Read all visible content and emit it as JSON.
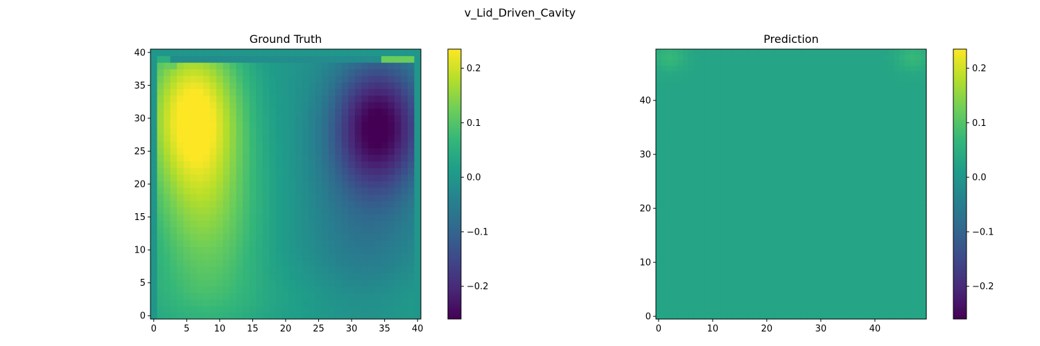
{
  "figure": {
    "suptitle": "v_Lid_Driven_Cavity"
  },
  "colormap": {
    "name": "viridis",
    "stops": [
      "#440154",
      "#482878",
      "#3e4989",
      "#31688e",
      "#26828e",
      "#1f9e89",
      "#35b779",
      "#6ece58",
      "#b5de2b",
      "#fde725"
    ]
  },
  "chart_data": [
    {
      "type": "heatmap",
      "title": "Ground Truth",
      "grid_size": [
        41,
        41
      ],
      "xlim": [
        -0.5,
        40.5
      ],
      "ylim": [
        -0.5,
        40.5
      ],
      "origin": "lower",
      "xticks": [
        0,
        5,
        10,
        15,
        20,
        25,
        30,
        35,
        40
      ],
      "yticks": [
        0,
        5,
        10,
        15,
        20,
        25,
        30,
        35,
        40
      ],
      "colorbar": {
        "vmin": -0.26,
        "vmax": 0.235,
        "ticks": [
          -0.2,
          -0.1,
          0.0,
          0.1,
          0.2
        ],
        "tick_labels": [
          "−0.2",
          "−0.1",
          "0.0",
          "0.1",
          "0.2"
        ]
      },
      "field_features": {
        "background": 0.0,
        "positive_vortex": {
          "center": [
            6,
            31
          ],
          "peak": 0.235
        },
        "negative_vortex": {
          "center": [
            34,
            29
          ],
          "peak": -0.26
        },
        "lid_row": 39,
        "walls": [
          0,
          40
        ]
      }
    },
    {
      "type": "heatmap",
      "title": "Prediction",
      "grid_size": [
        50,
        50
      ],
      "xlim": [
        -0.5,
        49.5
      ],
      "ylim": [
        -0.5,
        49.5
      ],
      "origin": "lower",
      "xticks": [
        0,
        10,
        20,
        30,
        40
      ],
      "yticks": [
        0,
        10,
        20,
        30,
        40
      ],
      "colorbar": {
        "vmin": -0.26,
        "vmax": 0.235,
        "ticks": [
          -0.2,
          -0.1,
          0.0,
          0.1,
          0.2
        ],
        "tick_labels": [
          "−0.2",
          "−0.1",
          "0.0",
          "0.1",
          "0.2"
        ]
      },
      "field_features": {
        "background": 0.03,
        "corner_highlights": [
          {
            "center": [
              2,
              48
            ],
            "peak": 0.07
          },
          {
            "center": [
              47,
              48
            ],
            "peak": 0.07
          }
        ]
      }
    }
  ]
}
